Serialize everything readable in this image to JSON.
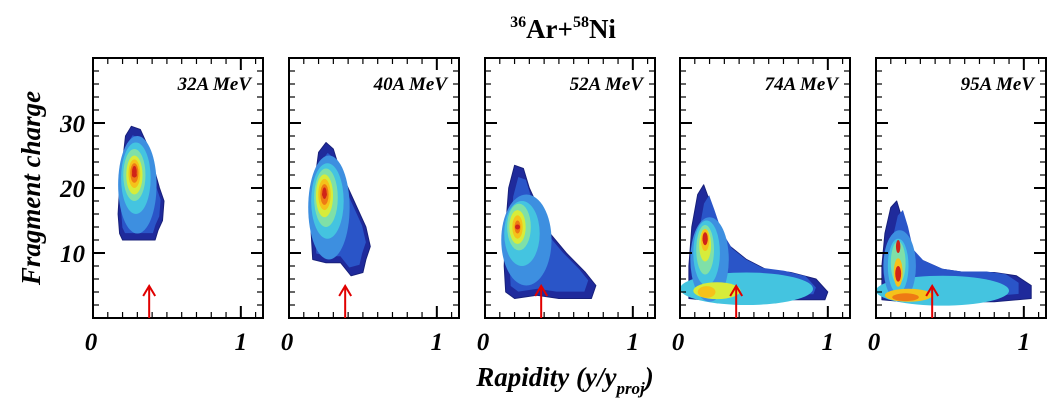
{
  "chart_data": {
    "type": "heatmap",
    "title": {
      "a1": "36",
      "b1": "Ar+",
      "a2": "58",
      "b2": "Ni"
    },
    "xlabel": {
      "main": "Rapidity (y/y",
      "sub": "proj",
      "end": ")"
    },
    "ylabel": "Fragment charge",
    "xlim": [
      0,
      1.15
    ],
    "ylim": [
      0,
      40
    ],
    "x_ticks": [
      "0",
      "1"
    ],
    "y_ticks": [
      "10",
      "20",
      "30"
    ],
    "colors": [
      "#1f2a9b",
      "#2a55c8",
      "#3d8fe0",
      "#44c4e0",
      "#7fe0a8",
      "#d7ec3a",
      "#f5c21a",
      "#ee7a14",
      "#d02418"
    ],
    "arrow_color": "#e00000",
    "panels": [
      {
        "label": "32A MeV",
        "arrow_x": 0.38,
        "peak": [
          0.28,
          22
        ],
        "outline": [
          [
            0.18,
            13
          ],
          [
            0.17,
            16
          ],
          [
            0.18,
            20
          ],
          [
            0.2,
            24
          ],
          [
            0.22,
            28
          ],
          [
            0.26,
            29.5
          ],
          [
            0.32,
            29
          ],
          [
            0.36,
            27
          ],
          [
            0.4,
            24
          ],
          [
            0.45,
            20
          ],
          [
            0.48,
            18
          ],
          [
            0.47,
            15
          ],
          [
            0.44,
            13.5
          ],
          [
            0.42,
            12
          ],
          [
            0.3,
            12
          ],
          [
            0.2,
            12
          ]
        ],
        "blobs": [
          {
            "cx": 0.3,
            "cy": 20.5,
            "rx": 0.13,
            "ry": 7.5,
            "level": 2
          },
          {
            "cx": 0.29,
            "cy": 21.5,
            "rx": 0.1,
            "ry": 5.5,
            "level": 3
          },
          {
            "cx": 0.28,
            "cy": 22,
            "rx": 0.075,
            "ry": 4,
            "level": 4
          },
          {
            "cx": 0.28,
            "cy": 22,
            "rx": 0.055,
            "ry": 3,
            "level": 5
          },
          {
            "cx": 0.28,
            "cy": 22.2,
            "rx": 0.04,
            "ry": 2.2,
            "level": 6
          },
          {
            "cx": 0.28,
            "cy": 22.3,
            "rx": 0.028,
            "ry": 1.5,
            "level": 7
          },
          {
            "cx": 0.28,
            "cy": 22.5,
            "rx": 0.016,
            "ry": 0.9,
            "level": 8
          }
        ]
      },
      {
        "label": "40A MeV",
        "arrow_x": 0.38,
        "peak": [
          0.24,
          19
        ],
        "outline": [
          [
            0.16,
            9
          ],
          [
            0.15,
            13
          ],
          [
            0.16,
            18
          ],
          [
            0.18,
            22
          ],
          [
            0.2,
            25.5
          ],
          [
            0.25,
            27
          ],
          [
            0.3,
            26
          ],
          [
            0.34,
            23
          ],
          [
            0.4,
            20
          ],
          [
            0.46,
            17
          ],
          [
            0.52,
            14
          ],
          [
            0.55,
            11
          ],
          [
            0.52,
            9
          ],
          [
            0.5,
            7
          ],
          [
            0.42,
            6.5
          ],
          [
            0.35,
            8.5
          ],
          [
            0.25,
            8.5
          ]
        ],
        "blobs": [
          {
            "cx": 0.27,
            "cy": 17,
            "rx": 0.14,
            "ry": 8,
            "level": 2
          },
          {
            "cx": 0.26,
            "cy": 18,
            "rx": 0.11,
            "ry": 5.8,
            "level": 3
          },
          {
            "cx": 0.25,
            "cy": 18.5,
            "rx": 0.08,
            "ry": 4.5,
            "level": 4
          },
          {
            "cx": 0.24,
            "cy": 18.8,
            "rx": 0.058,
            "ry": 3.3,
            "level": 5
          },
          {
            "cx": 0.24,
            "cy": 19,
            "rx": 0.042,
            "ry": 2.4,
            "level": 6
          },
          {
            "cx": 0.24,
            "cy": 19,
            "rx": 0.028,
            "ry": 1.6,
            "level": 7
          },
          {
            "cx": 0.24,
            "cy": 19.2,
            "rx": 0.015,
            "ry": 0.9,
            "level": 8
          }
        ]
      },
      {
        "label": "52A MeV",
        "arrow_x": 0.38,
        "peak": [
          0.22,
          14
        ],
        "outline": [
          [
            0.14,
            4
          ],
          [
            0.13,
            8
          ],
          [
            0.14,
            14
          ],
          [
            0.16,
            20
          ],
          [
            0.2,
            23.5
          ],
          [
            0.26,
            23
          ],
          [
            0.3,
            20
          ],
          [
            0.36,
            17
          ],
          [
            0.44,
            13
          ],
          [
            0.55,
            10
          ],
          [
            0.68,
            7
          ],
          [
            0.75,
            5
          ],
          [
            0.72,
            3
          ],
          [
            0.6,
            3
          ],
          [
            0.5,
            3
          ],
          [
            0.35,
            3.5
          ],
          [
            0.2,
            3
          ]
        ],
        "blobs": [
          {
            "cx": 0.28,
            "cy": 12,
            "rx": 0.17,
            "ry": 7,
            "level": 2
          },
          {
            "cx": 0.25,
            "cy": 13,
            "rx": 0.12,
            "ry": 5,
            "level": 3
          },
          {
            "cx": 0.23,
            "cy": 14,
            "rx": 0.08,
            "ry": 3.6,
            "level": 4
          },
          {
            "cx": 0.22,
            "cy": 14,
            "rx": 0.055,
            "ry": 2.6,
            "level": 5
          },
          {
            "cx": 0.22,
            "cy": 14,
            "rx": 0.035,
            "ry": 1.8,
            "level": 6
          },
          {
            "cx": 0.22,
            "cy": 14,
            "rx": 0.02,
            "ry": 1.0,
            "level": 7
          }
        ]
      },
      {
        "label": "74A MeV",
        "arrow_x": 0.38,
        "peak": [
          0.17,
          12
        ],
        "outline": [
          [
            0.06,
            3
          ],
          [
            0.06,
            8
          ],
          [
            0.08,
            14
          ],
          [
            0.12,
            19
          ],
          [
            0.16,
            20.5
          ],
          [
            0.2,
            18
          ],
          [
            0.26,
            14
          ],
          [
            0.34,
            11
          ],
          [
            0.45,
            9
          ],
          [
            0.58,
            7.5
          ],
          [
            0.75,
            7
          ],
          [
            0.92,
            6
          ],
          [
            1.0,
            4
          ],
          [
            0.98,
            2.8
          ],
          [
            0.7,
            2.8
          ],
          [
            0.4,
            2.8
          ],
          [
            0.15,
            2.8
          ]
        ],
        "blobs": [
          {
            "cx": 0.45,
            "cy": 4.5,
            "rx": 0.45,
            "ry": 2.5,
            "level": 3
          },
          {
            "cx": 0.2,
            "cy": 9,
            "rx": 0.13,
            "ry": 6.5,
            "level": 2
          },
          {
            "cx": 0.18,
            "cy": 10,
            "rx": 0.09,
            "ry": 5,
            "level": 3
          },
          {
            "cx": 0.17,
            "cy": 10.5,
            "rx": 0.06,
            "ry": 3.8,
            "level": 4
          },
          {
            "cx": 0.17,
            "cy": 11.2,
            "rx": 0.04,
            "ry": 2.5,
            "level": 5
          },
          {
            "cx": 0.17,
            "cy": 12,
            "rx": 0.028,
            "ry": 1.7,
            "level": 6
          },
          {
            "cx": 0.17,
            "cy": 12.2,
            "rx": 0.018,
            "ry": 1.0,
            "level": 8
          },
          {
            "cx": 0.25,
            "cy": 4.2,
            "rx": 0.16,
            "ry": 1.3,
            "level": 5
          },
          {
            "cx": 0.18,
            "cy": 4,
            "rx": 0.06,
            "ry": 0.9,
            "level": 6
          }
        ]
      },
      {
        "label": "95A MeV",
        "arrow_x": 0.38,
        "peak": [
          0.15,
          7
        ],
        "outline": [
          [
            0.04,
            2.8
          ],
          [
            0.04,
            8
          ],
          [
            0.06,
            13
          ],
          [
            0.1,
            17
          ],
          [
            0.14,
            18
          ],
          [
            0.18,
            15
          ],
          [
            0.22,
            11
          ],
          [
            0.3,
            9
          ],
          [
            0.45,
            7.5
          ],
          [
            0.6,
            7
          ],
          [
            0.8,
            7
          ],
          [
            0.95,
            6.5
          ],
          [
            1.05,
            5
          ],
          [
            1.05,
            3
          ],
          [
            0.8,
            2.5
          ],
          [
            0.5,
            2.5
          ],
          [
            0.2,
            2.5
          ]
        ],
        "blobs": [
          {
            "cx": 0.45,
            "cy": 4.2,
            "rx": 0.45,
            "ry": 2.3,
            "level": 3
          },
          {
            "cx": 0.16,
            "cy": 8,
            "rx": 0.11,
            "ry": 5.5,
            "level": 2
          },
          {
            "cx": 0.15,
            "cy": 8,
            "rx": 0.07,
            "ry": 4.2,
            "level": 3
          },
          {
            "cx": 0.15,
            "cy": 8.5,
            "rx": 0.05,
            "ry": 3.3,
            "level": 4
          },
          {
            "cx": 0.15,
            "cy": 7,
            "rx": 0.03,
            "ry": 2.2,
            "level": 6
          },
          {
            "cx": 0.15,
            "cy": 6.8,
            "rx": 0.02,
            "ry": 1.2,
            "level": 8
          },
          {
            "cx": 0.15,
            "cy": 11,
            "rx": 0.015,
            "ry": 1.0,
            "level": 8
          },
          {
            "cx": 0.22,
            "cy": 3.5,
            "rx": 0.16,
            "ry": 1.0,
            "level": 6
          },
          {
            "cx": 0.2,
            "cy": 3.2,
            "rx": 0.09,
            "ry": 0.6,
            "level": 7
          }
        ]
      }
    ]
  }
}
